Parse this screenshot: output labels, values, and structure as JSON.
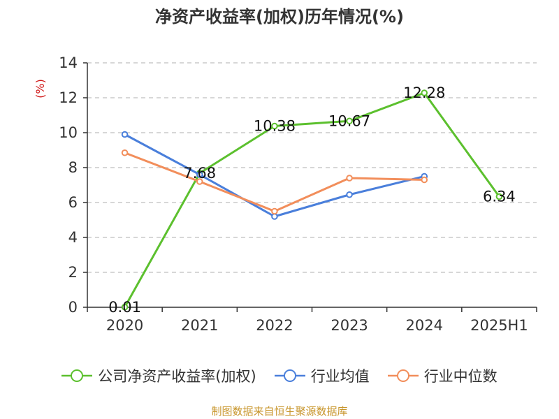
{
  "chart_data": {
    "type": "line",
    "title": "净资产收益率(加权)历年情况(%)",
    "ylabel": "(%)",
    "categories": [
      "2020",
      "2021",
      "2022",
      "2023",
      "2024",
      "2025H1"
    ],
    "ylim": [
      0,
      14
    ],
    "yticks": [
      0,
      2,
      4,
      6,
      8,
      10,
      12,
      14
    ],
    "grid": true,
    "legend_position": "bottom",
    "series": [
      {
        "name": "公司净资产收益率(加权)",
        "color": "#5cc02e",
        "values": [
          0.01,
          7.68,
          10.38,
          10.67,
          12.28,
          6.34
        ],
        "labels": [
          "0.01",
          "7.68",
          "10.38",
          "10.67",
          "12.28",
          "6.34"
        ]
      },
      {
        "name": "行业均值",
        "color": "#4a7fdb",
        "values": [
          9.9,
          7.6,
          5.2,
          6.45,
          7.5,
          null
        ]
      },
      {
        "name": "行业中位数",
        "color": "#f28e5b",
        "values": [
          8.85,
          7.2,
          5.5,
          7.4,
          7.3,
          null
        ]
      }
    ]
  },
  "source_note": "制图数据来自恒生聚源数据库"
}
